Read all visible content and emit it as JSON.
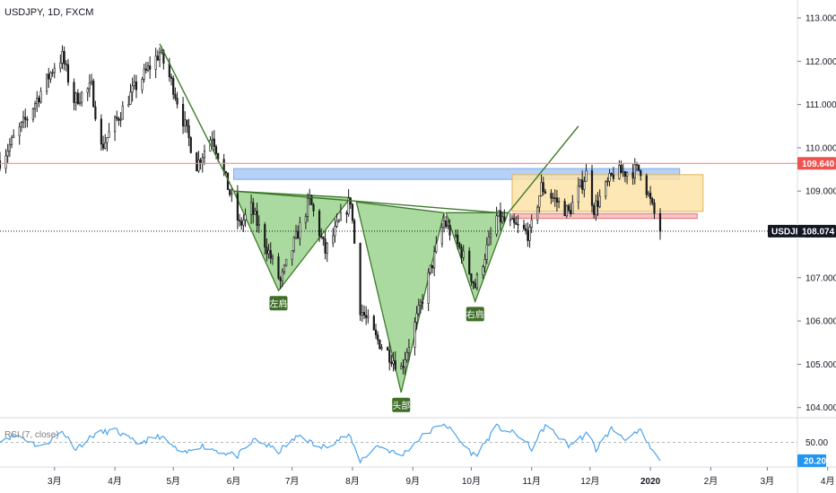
{
  "title": "USDJPY, 1D, FXCM",
  "colors": {
    "candle": "#1a1a1a",
    "pattern_fill": "#9bd48e",
    "pattern_stroke": "#3e7a2b",
    "pattern_label_bg": "#3e6e28",
    "resistance": "#f28e8e",
    "blue_zone": "#a9c9f5",
    "yellow_zone": "#fbe3a8",
    "pink_zone": "#f7b9b9",
    "rsi_line": "#4da3ee",
    "price_badge": "#131722",
    "resistance_badge": "#ef5350",
    "rsi_badge": "#2196f3"
  },
  "chart_data": [
    {
      "type": "candlestick",
      "title": "USDJPY, 1D, FXCM",
      "y_axis_ticks": [
        "113.000",
        "112.000",
        "111.000",
        "110.000",
        "109.000",
        "108.000",
        "107.000",
        "106.000",
        "105.000",
        "104.000"
      ],
      "ylim": [
        103.85,
        113.3
      ],
      "x_axis_ticks": [
        "3月",
        "4月",
        "5月",
        "6月",
        "7月",
        "8月",
        "9月",
        "10月",
        "11月",
        "12月",
        "2020",
        "2月",
        "3月",
        "4月"
      ],
      "last_price": "108.074",
      "last_price_label": "USDJPY",
      "resistance_level": "109.640",
      "pattern_labels": [
        {
          "text": "左肩",
          "price": 106.7
        },
        {
          "text": "头部",
          "price": 104.4
        },
        {
          "text": "右肩",
          "price": 106.4
        }
      ],
      "anchors": [
        {
          "date": "2019-02-01",
          "price": 109.7
        },
        {
          "date": "2019-02-15",
          "price": 110.7
        },
        {
          "date": "2019-03-01",
          "price": 111.9
        },
        {
          "date": "2019-03-05",
          "price": 112.1
        },
        {
          "date": "2019-03-11",
          "price": 111.1
        },
        {
          "date": "2019-03-20",
          "price": 111.4
        },
        {
          "date": "2019-03-25",
          "price": 110.0
        },
        {
          "date": "2019-04-10",
          "price": 111.3
        },
        {
          "date": "2019-04-24",
          "price": 112.2
        },
        {
          "date": "2019-05-01",
          "price": 111.4
        },
        {
          "date": "2019-05-13",
          "price": 109.6
        },
        {
          "date": "2019-05-21",
          "price": 110.3
        },
        {
          "date": "2019-06-04",
          "price": 108.2
        },
        {
          "date": "2019-06-10",
          "price": 108.6
        },
        {
          "date": "2019-06-25",
          "price": 106.9
        },
        {
          "date": "2019-07-10",
          "price": 108.8
        },
        {
          "date": "2019-07-18",
          "price": 107.6
        },
        {
          "date": "2019-07-31",
          "price": 108.8
        },
        {
          "date": "2019-08-05",
          "price": 106.3
        },
        {
          "date": "2019-08-13",
          "price": 105.6
        },
        {
          "date": "2019-08-26",
          "price": 104.9
        },
        {
          "date": "2019-09-04",
          "price": 106.2
        },
        {
          "date": "2019-09-17",
          "price": 108.3
        },
        {
          "date": "2019-09-26",
          "price": 107.6
        },
        {
          "date": "2019-10-03",
          "price": 106.8
        },
        {
          "date": "2019-10-14",
          "price": 108.4
        },
        {
          "date": "2019-10-31",
          "price": 108.0
        },
        {
          "date": "2019-11-06",
          "price": 109.1
        },
        {
          "date": "2019-11-20",
          "price": 108.5
        },
        {
          "date": "2019-11-29",
          "price": 109.4
        },
        {
          "date": "2019-12-03",
          "price": 108.6
        },
        {
          "date": "2019-12-13",
          "price": 109.4
        },
        {
          "date": "2019-12-27",
          "price": 109.5
        },
        {
          "date": "2020-01-02",
          "price": 108.6
        },
        {
          "date": "2020-01-06",
          "price": 108.07
        }
      ],
      "pattern_lines": [
        {
          "name": "downtrend",
          "from": {
            "date": "2019-04-24",
            "price": 112.4
          },
          "to": {
            "date": "2019-06-01",
            "price": 109.0
          }
        },
        {
          "name": "neckline",
          "from": {
            "date": "2019-06-01",
            "price": 109.0
          },
          "to": {
            "date": "2019-10-15",
            "price": 108.5
          }
        },
        {
          "name": "breakout",
          "from": {
            "date": "2019-10-20",
            "price": 108.5
          },
          "to": {
            "date": "2019-11-25",
            "price": 110.5
          }
        }
      ],
      "zones": [
        {
          "name": "blue-zone",
          "from": {
            "date": "2019-06-01",
            "price": 109.52
          },
          "to": {
            "date": "2020-01-16",
            "price": 109.27
          }
        },
        {
          "name": "yellow-zone",
          "from": {
            "date": "2019-10-22",
            "price": 109.38
          },
          "to": {
            "date": "2020-01-28",
            "price": 108.53
          }
        },
        {
          "name": "pink-zone",
          "from": {
            "date": "2019-10-22",
            "price": 108.48
          },
          "to": {
            "date": "2020-01-25",
            "price": 108.37
          }
        }
      ],
      "shoulders_head": [
        {
          "name": "left-shoulder",
          "points": [
            {
              "date": "2019-06-01",
              "price": 109.0
            },
            {
              "date": "2019-06-24",
              "price": 106.7
            },
            {
              "date": "2019-07-31",
              "price": 108.85
            }
          ]
        },
        {
          "name": "head",
          "points": [
            {
              "date": "2019-08-03",
              "price": 108.75
            },
            {
              "date": "2019-08-26",
              "price": 104.35
            },
            {
              "date": "2019-09-17",
              "price": 108.5
            }
          ]
        },
        {
          "name": "right-shoulder",
          "points": [
            {
              "date": "2019-09-18",
              "price": 108.5
            },
            {
              "date": "2019-10-03",
              "price": 106.45
            },
            {
              "date": "2019-10-20",
              "price": 108.5
            }
          ]
        }
      ]
    },
    {
      "type": "line",
      "title": "RSI (7, close)",
      "y_axis_ticks": [
        "50.00"
      ],
      "last_value": "20.20",
      "ylim": [
        0,
        100
      ],
      "anchors": [
        {
          "date": "2019-02-01",
          "value": 55
        },
        {
          "date": "2019-02-10",
          "value": 62
        },
        {
          "date": "2019-02-22",
          "value": 42
        },
        {
          "date": "2019-03-05",
          "value": 68
        },
        {
          "date": "2019-03-12",
          "value": 40
        },
        {
          "date": "2019-03-22",
          "value": 64
        },
        {
          "date": "2019-04-01",
          "value": 70
        },
        {
          "date": "2019-04-12",
          "value": 48
        },
        {
          "date": "2019-04-24",
          "value": 60
        },
        {
          "date": "2019-05-06",
          "value": 30
        },
        {
          "date": "2019-05-15",
          "value": 45
        },
        {
          "date": "2019-05-25",
          "value": 35
        },
        {
          "date": "2019-06-03",
          "value": 28
        },
        {
          "date": "2019-06-12",
          "value": 55
        },
        {
          "date": "2019-06-24",
          "value": 35
        },
        {
          "date": "2019-07-05",
          "value": 62
        },
        {
          "date": "2019-07-15",
          "value": 40
        },
        {
          "date": "2019-07-30",
          "value": 62
        },
        {
          "date": "2019-08-05",
          "value": 20
        },
        {
          "date": "2019-08-14",
          "value": 45
        },
        {
          "date": "2019-08-26",
          "value": 28
        },
        {
          "date": "2019-09-05",
          "value": 58
        },
        {
          "date": "2019-09-17",
          "value": 82
        },
        {
          "date": "2019-09-28",
          "value": 42
        },
        {
          "date": "2019-10-03",
          "value": 28
        },
        {
          "date": "2019-10-14",
          "value": 75
        },
        {
          "date": "2019-10-25",
          "value": 62
        },
        {
          "date": "2019-11-01",
          "value": 40
        },
        {
          "date": "2019-11-08",
          "value": 78
        },
        {
          "date": "2019-11-20",
          "value": 45
        },
        {
          "date": "2019-11-30",
          "value": 65
        },
        {
          "date": "2019-12-04",
          "value": 38
        },
        {
          "date": "2019-12-12",
          "value": 72
        },
        {
          "date": "2019-12-20",
          "value": 55
        },
        {
          "date": "2019-12-27",
          "value": 68
        },
        {
          "date": "2020-01-01",
          "value": 40
        },
        {
          "date": "2020-01-06",
          "value": 20
        }
      ]
    }
  ]
}
